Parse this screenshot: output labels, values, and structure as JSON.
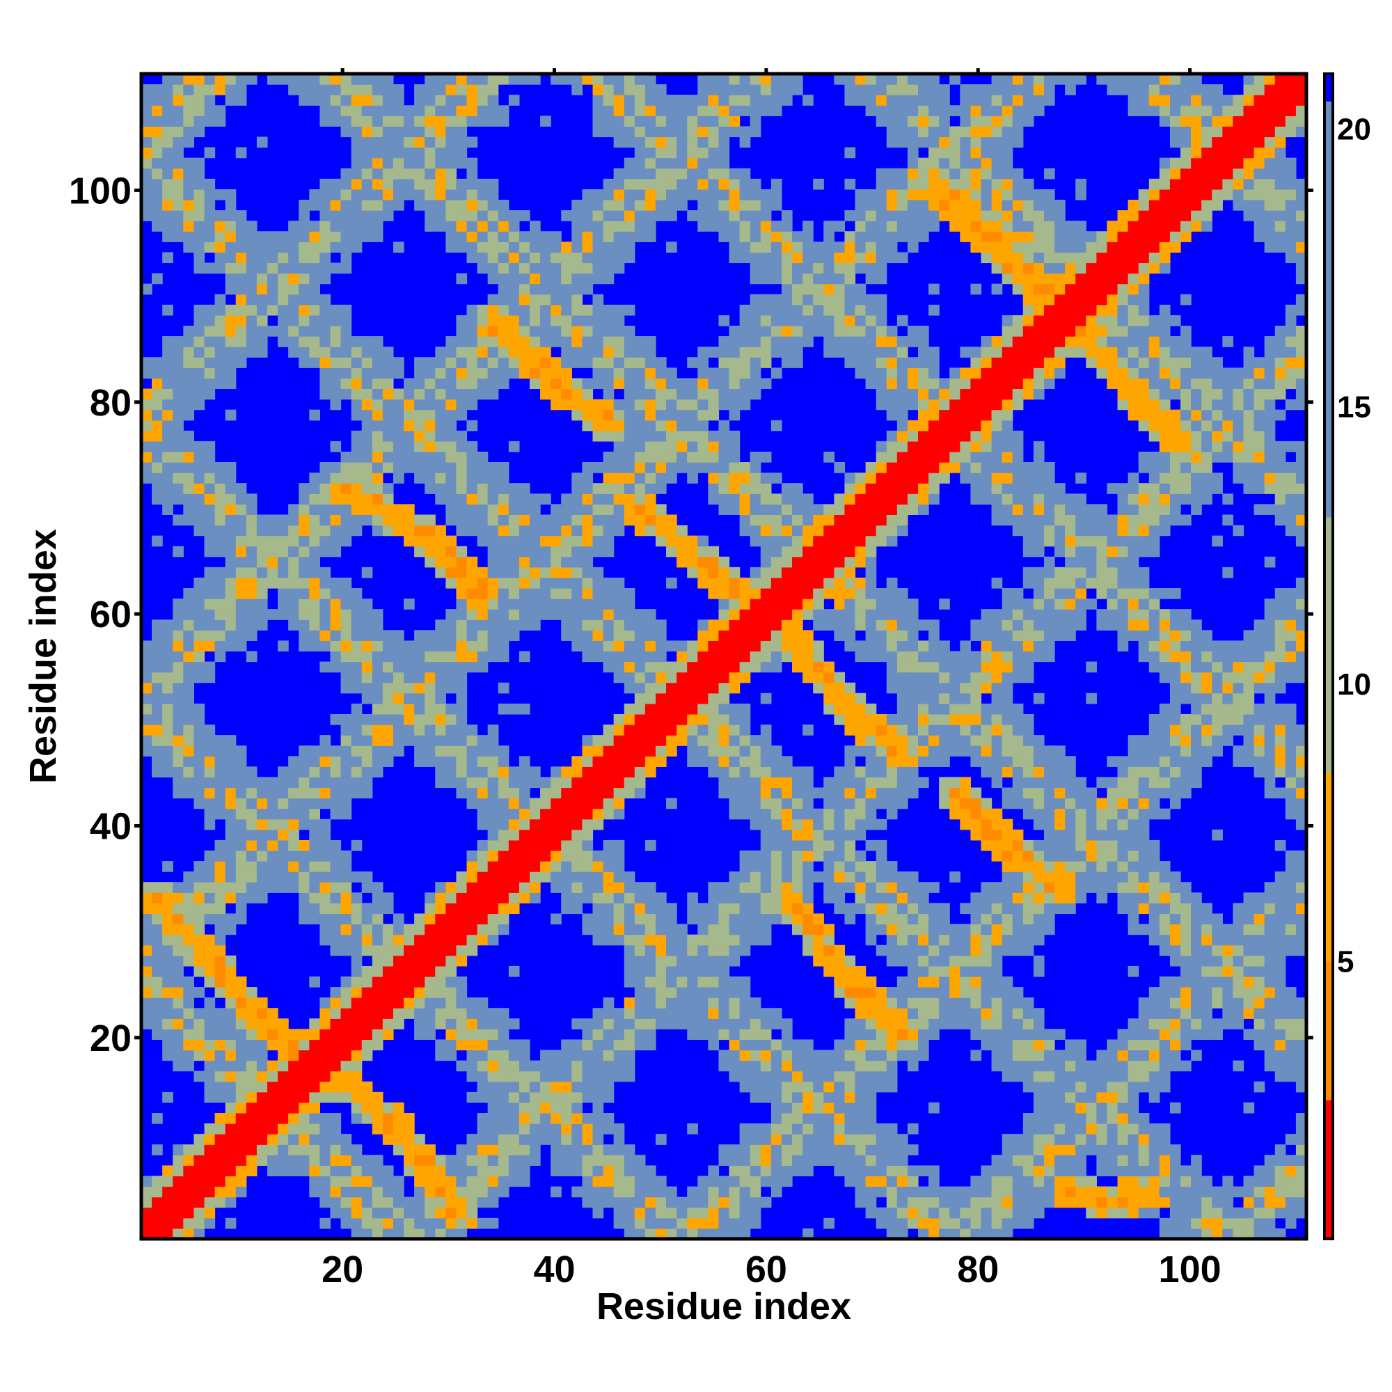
{
  "chart_data": {
    "type": "heatmap",
    "title": "",
    "xlabel": "Residue index",
    "ylabel": "Residue index",
    "n_residues": 111,
    "xlim": [
      1,
      111
    ],
    "ylim": [
      1,
      111
    ],
    "x_ticks": [
      20,
      40,
      60,
      80,
      100
    ],
    "y_ticks": [
      20,
      40,
      60,
      80,
      100
    ],
    "colorbar": {
      "ticks": [
        5,
        10,
        15,
        20
      ],
      "range": [
        0,
        21
      ],
      "max_distance": 20.5,
      "colors": {
        "near": "#ff0000",
        "contact": "#ff8c00",
        "close": "#ffa500",
        "mid": "#a5b98c",
        "far": "#6b8fc0",
        "none": "#0000ff"
      }
    },
    "diagonal_band_halfwidth": 2,
    "structure_nodes": [
      6,
      20,
      34,
      47,
      60,
      73,
      86,
      99
    ],
    "contact_bands": [
      {
        "description": "anti-diagonal contacts",
        "points": [
          [
            2,
            33
          ],
          [
            12,
            21
          ],
          [
            24,
            12
          ],
          [
            31,
            3
          ]
        ]
      },
      {
        "description": "anti-diagonal contacts",
        "points": [
          [
            20,
            72
          ],
          [
            27,
            68
          ],
          [
            33,
            62
          ]
        ]
      },
      {
        "description": "anti-diagonal contacts",
        "points": [
          [
            34,
            88
          ],
          [
            40,
            82
          ],
          [
            45,
            78
          ]
        ]
      },
      {
        "description": "anti-diagonal contacts",
        "points": [
          [
            48,
            70
          ],
          [
            55,
            64
          ],
          [
            60,
            60
          ]
        ]
      },
      {
        "description": "anti-diagonal contacts",
        "points": [
          [
            62,
            58
          ],
          [
            69,
            50
          ],
          [
            73,
            47
          ]
        ]
      },
      {
        "description": "anti-diagonal contacts",
        "points": [
          [
            62,
            33
          ],
          [
            68,
            25
          ],
          [
            73,
            20
          ]
        ]
      },
      {
        "description": "anti-diagonal contacts",
        "points": [
          [
            78,
            43
          ],
          [
            83,
            38
          ],
          [
            88,
            34
          ]
        ]
      },
      {
        "description": "anti-diagonal contacts",
        "points": [
          [
            76,
            101
          ],
          [
            84,
            93
          ],
          [
            89,
            88
          ]
        ]
      },
      {
        "description": "anti-diagonal contacts",
        "points": [
          [
            90,
            87
          ],
          [
            96,
            80
          ],
          [
            100,
            76
          ]
        ]
      },
      {
        "description": "anti-diagonal contacts",
        "points": [
          [
            89,
            5
          ],
          [
            93,
            4
          ],
          [
            96,
            5
          ]
        ]
      }
    ]
  }
}
